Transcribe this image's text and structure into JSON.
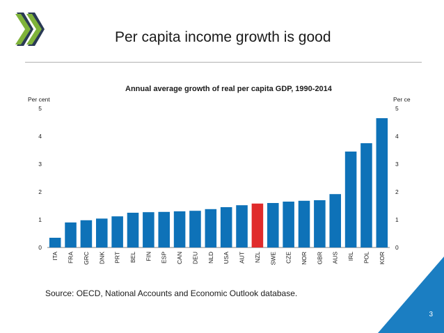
{
  "slide": {
    "title": "Per capita income growth is good",
    "source": "Source: OECD, National Accounts and Economic Outlook database.",
    "page_number": "3"
  },
  "colors": {
    "bar": "#0e72b8",
    "highlight": "#e02b2b",
    "logo_green": "#7fb33a",
    "logo_dark": "#2a3a55",
    "corner_blue": "#1b7ec2"
  },
  "chart_data": {
    "type": "bar",
    "title": "Annual average growth of real per capita GDP, 1990-2014",
    "ylabel_left": "Per cent",
    "ylabel_right": "Per cent",
    "ylim": [
      0,
      5
    ],
    "yticks": [
      0,
      1,
      2,
      3,
      4,
      5
    ],
    "grid": false,
    "categories": [
      "ITA",
      "FRA",
      "GRC",
      "DNK",
      "PRT",
      "BEL",
      "FIN",
      "ESP",
      "CAN",
      "DEU",
      "NLD",
      "USA",
      "AUT",
      "NZL",
      "SWE",
      "CZE",
      "NOR",
      "GBR",
      "AUS",
      "IRL",
      "POL",
      "KOR"
    ],
    "values": [
      0.35,
      0.9,
      0.98,
      1.04,
      1.12,
      1.25,
      1.27,
      1.28,
      1.3,
      1.32,
      1.38,
      1.45,
      1.52,
      1.58,
      1.6,
      1.65,
      1.68,
      1.7,
      1.92,
      3.45,
      3.75,
      4.65
    ],
    "highlight": "NZL"
  }
}
